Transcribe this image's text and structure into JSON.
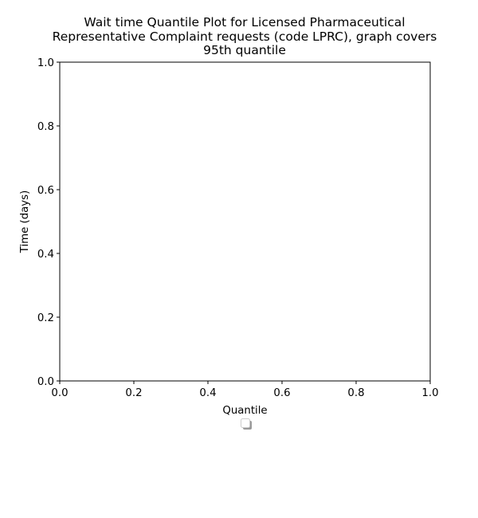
{
  "chart_data": {
    "type": "line",
    "title_lines": [
      "Wait time Quantile Plot for Licensed Pharmaceutical",
      "Representative Complaint  requests (code LPRC), graph covers",
      "95th quantile"
    ],
    "xlabel": "Quantile",
    "ylabel": "Time (days)",
    "xlim": [
      0,
      1
    ],
    "ylim": [
      0,
      1
    ],
    "xticks": [
      "0.0",
      "0.2",
      "0.4",
      "0.6",
      "0.8",
      "1.0"
    ],
    "yticks": [
      "0.0",
      "0.2",
      "0.4",
      "0.6",
      "0.8",
      "1.0"
    ],
    "series": [],
    "grid": false,
    "legend": {
      "placement": "below",
      "entries": []
    }
  }
}
